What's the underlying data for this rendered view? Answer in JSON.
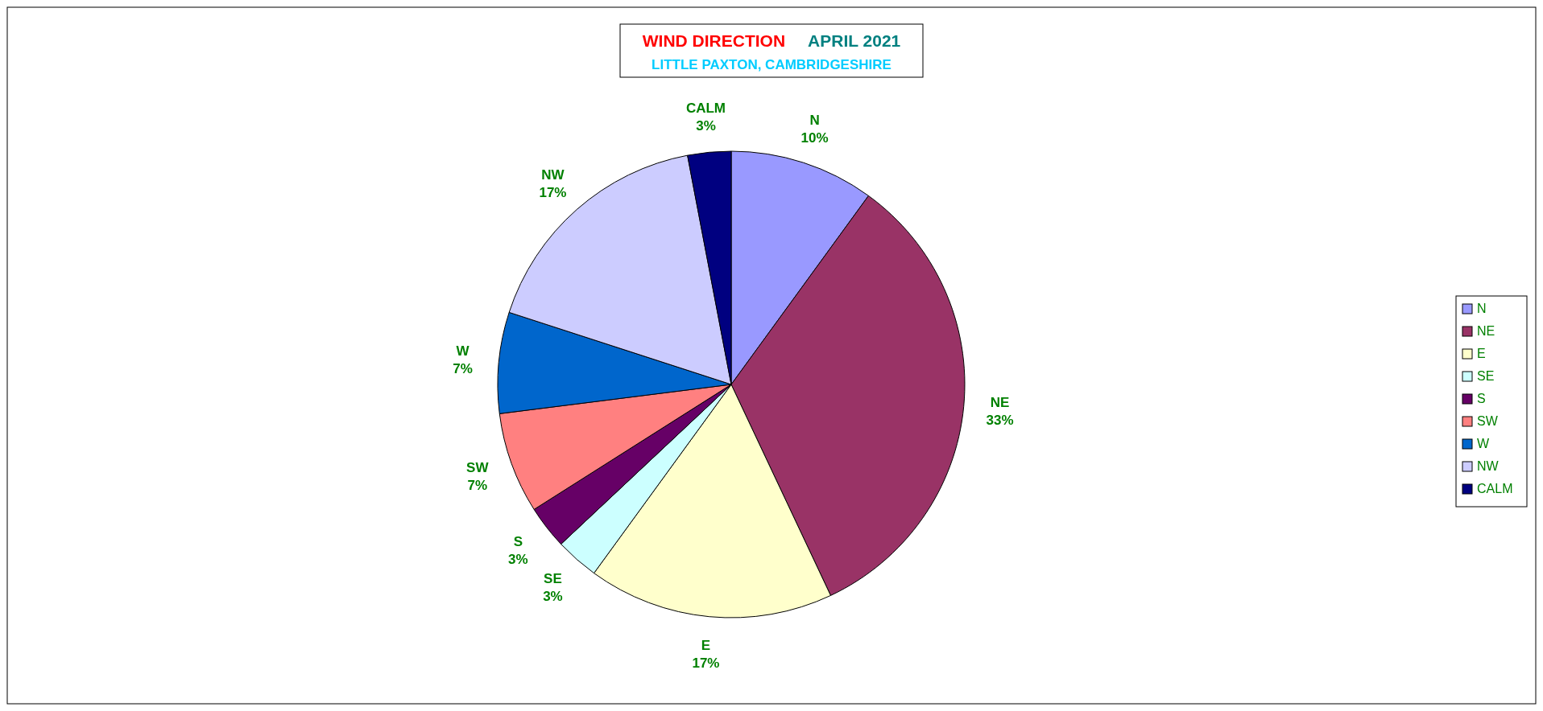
{
  "chart_data": {
    "type": "pie",
    "title": "WIND DIRECTION",
    "subtitle": "APRIL 2021",
    "annotations": [
      "LITTLE PAXTON, CAMBRIDGESHIRE"
    ],
    "categories": [
      "N",
      "NE",
      "E",
      "SE",
      "S",
      "SW",
      "W",
      "NW",
      "CALM"
    ],
    "values": [
      10,
      33,
      17,
      3,
      3,
      7,
      7,
      17,
      3
    ],
    "value_labels": [
      "10%",
      "33%",
      "17%",
      "3%",
      "3%",
      "7%",
      "7%",
      "17%",
      "3%"
    ],
    "colors": [
      "#9999ff",
      "#993366",
      "#ffffcc",
      "#ccffff",
      "#660066",
      "#ff8080",
      "#0066cc",
      "#ccccff",
      "#000080"
    ],
    "legend": "right"
  }
}
